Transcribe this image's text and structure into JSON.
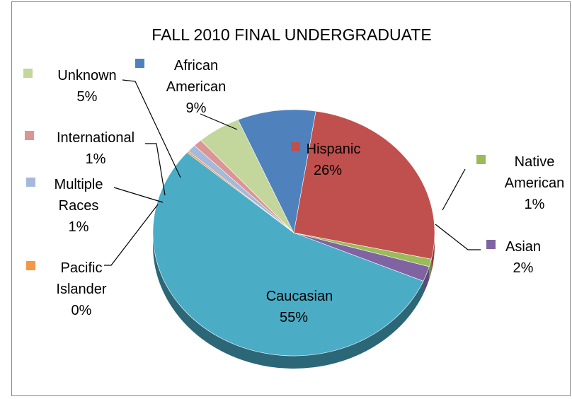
{
  "chart_data": {
    "type": "pie",
    "title": "FALL 2010 FINAL UNDERGRADUATE",
    "slices": [
      {
        "key": "hispanic",
        "name": "Hispanic",
        "label_lines": [
          "Hispanic"
        ],
        "value": 26,
        "pct": "26%",
        "color": "#C0504D",
        "edge": "#8E3A38"
      },
      {
        "key": "native-american",
        "name": "Native American",
        "label_lines": [
          "Native",
          "American"
        ],
        "value": 1,
        "pct": "1%",
        "color": "#9BBB59",
        "edge": "#728A41"
      },
      {
        "key": "asian",
        "name": "Asian",
        "label_lines": [
          "Asian"
        ],
        "value": 2,
        "pct": "2%",
        "color": "#8064A2",
        "edge": "#5E4A78"
      },
      {
        "key": "caucasian",
        "name": "Caucasian",
        "label_lines": [
          "Caucasian"
        ],
        "value": 55,
        "pct": "55%",
        "color": "#4BACC6",
        "edge": "#2C6778"
      },
      {
        "key": "pacific-islander",
        "name": "Pacific Islander",
        "label_lines": [
          "Pacific",
          "Islander"
        ],
        "value": 0,
        "pct": "0%",
        "color": "#F79646",
        "edge": "#B66E33"
      },
      {
        "key": "multiple-races",
        "name": "Multiple Races",
        "label_lines": [
          "Multiple",
          "Races"
        ],
        "value": 1,
        "pct": "1%",
        "color": "#A5B9DB",
        "edge": "#7A8AA3"
      },
      {
        "key": "international",
        "name": "International",
        "label_lines": [
          "International"
        ],
        "value": 1,
        "pct": "1%",
        "color": "#D99694",
        "edge": "#A06E6D"
      },
      {
        "key": "unknown",
        "name": "Unknown",
        "label_lines": [
          "Unknown"
        ],
        "value": 5,
        "pct": "5%",
        "color": "#C3D69B",
        "edge": "#909E72"
      },
      {
        "key": "african-american",
        "name": "African American",
        "label_lines": [
          "African",
          "American"
        ],
        "value": 9,
        "pct": "9%",
        "color": "#4F81BD",
        "edge": "#3A5F8C"
      }
    ]
  }
}
